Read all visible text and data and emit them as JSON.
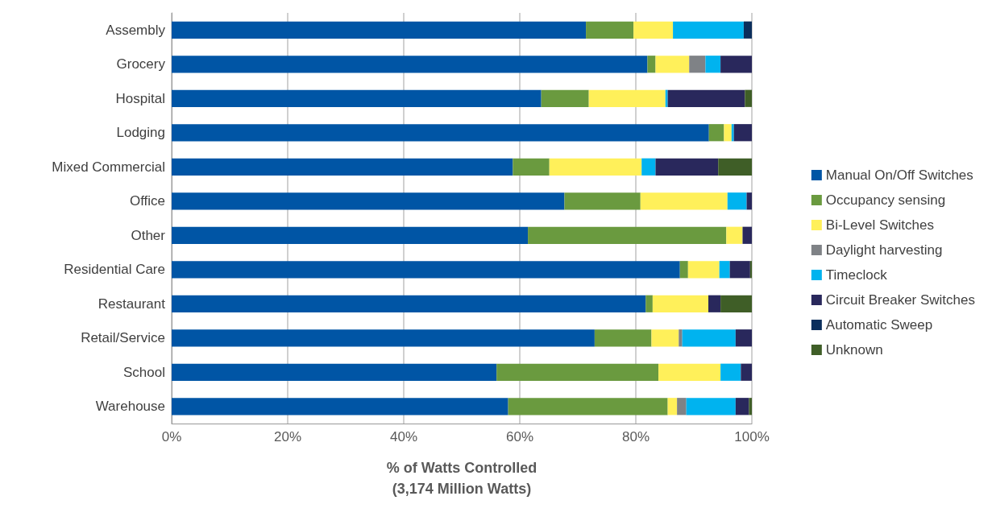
{
  "chart_data": {
    "type": "bar",
    "orientation": "horizontal",
    "stacked": true,
    "xlabel": "% of Watts Controlled\n(3,174 Million Watts)",
    "categories": [
      "Assembly",
      "Grocery",
      "Hospital",
      "Lodging",
      "Mixed Commercial",
      "Office",
      "Other",
      "Residential Care",
      "Restaurant",
      "Retail/Service",
      "School",
      "Warehouse"
    ],
    "series": [
      {
        "name": "Manual On/Off Switches",
        "color": "#0055a5",
        "values": [
          71.4,
          82.0,
          63.7,
          92.6,
          58.8,
          67.7,
          61.4,
          87.6,
          81.7,
          72.9,
          56.0,
          58.0
        ]
      },
      {
        "name": "Occupancy sensing",
        "color": "#6a9a3f",
        "values": [
          8.2,
          1.4,
          8.2,
          2.6,
          6.3,
          13.1,
          34.2,
          1.4,
          1.2,
          9.8,
          27.9,
          27.5
        ]
      },
      {
        "name": "Bi-Level Switches",
        "color": "#fff05a",
        "values": [
          6.8,
          5.8,
          13.2,
          1.3,
          15.9,
          15.0,
          2.8,
          5.4,
          9.6,
          4.7,
          10.7,
          1.6
        ]
      },
      {
        "name": "Daylight harvesting",
        "color": "#7f8286",
        "values": [
          0,
          2.8,
          0,
          0,
          0,
          0,
          0,
          0,
          0,
          0.6,
          0,
          1.6
        ]
      },
      {
        "name": "Timeclock",
        "color": "#00b3ef",
        "values": [
          12.2,
          2.6,
          0.4,
          0.4,
          2.4,
          3.3,
          0,
          1.8,
          0,
          9.2,
          3.5,
          8.5
        ]
      },
      {
        "name": "Circuit Breaker Switches",
        "color": "#29285c",
        "values": [
          0,
          5.4,
          13.3,
          3.1,
          10.8,
          0.9,
          1.6,
          3.5,
          2.1,
          2.8,
          1.9,
          2.3
        ]
      },
      {
        "name": "Automatic Sweep",
        "color": "#0b2e5c",
        "values": [
          1.4,
          0,
          0,
          0,
          0,
          0,
          0,
          0,
          0,
          0,
          0,
          0
        ]
      },
      {
        "name": "Unknown",
        "color": "#3f5e27",
        "values": [
          0,
          0,
          1.2,
          0,
          5.8,
          0,
          0,
          0.3,
          5.4,
          0,
          0,
          0.5
        ]
      }
    ],
    "xlim": [
      0,
      100
    ],
    "xticks": [
      {
        "value": 0,
        "label": "0%"
      },
      {
        "value": 20,
        "label": "20%"
      },
      {
        "value": 40,
        "label": "40%"
      },
      {
        "value": 60,
        "label": "60%"
      },
      {
        "value": 80,
        "label": "80%"
      },
      {
        "value": 100,
        "label": "100%"
      }
    ],
    "grid": "x",
    "legend": "right"
  }
}
